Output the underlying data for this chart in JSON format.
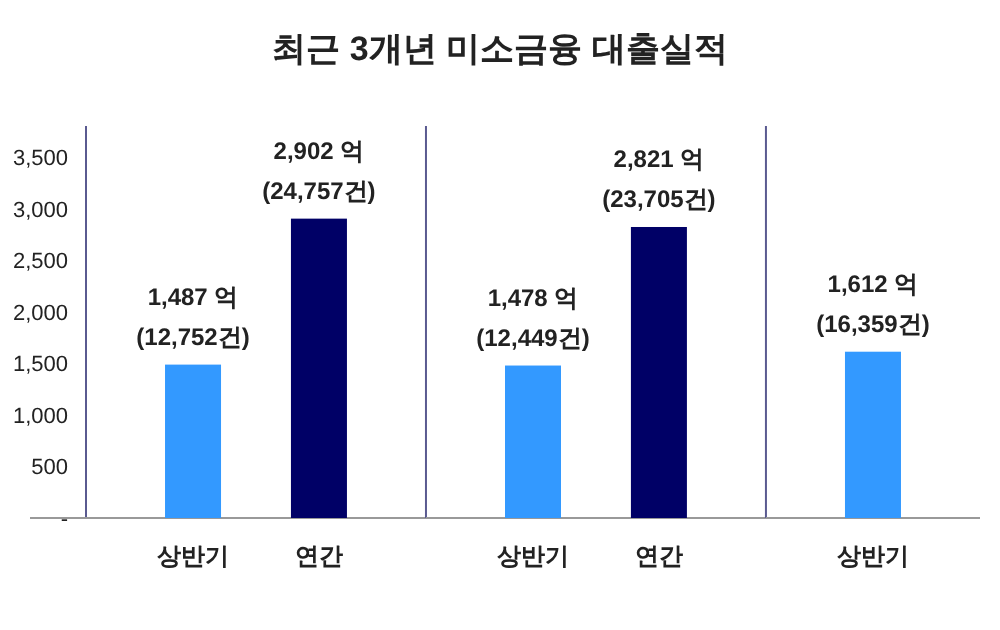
{
  "chart_data": [
    {
      "type": "bar",
      "title": "최근 3개년 미소금융 대출실적",
      "categories": [
        "상반기",
        "연간"
      ],
      "values": [
        1487,
        2902
      ],
      "colors": [
        "#3399ff",
        "#000066"
      ],
      "value_labels": [
        "1,487 억\n(12,752건)",
        "2,902 억\n(24,757건)"
      ],
      "ylim": [
        0,
        3800
      ],
      "yticks": [
        {
          "value": 0,
          "label": "-"
        },
        {
          "value": 500,
          "label": "500"
        },
        {
          "value": 1000,
          "label": "1,000"
        },
        {
          "value": 1500,
          "label": "1,500"
        },
        {
          "value": 2000,
          "label": "2,000"
        },
        {
          "value": 2500,
          "label": "2,500"
        },
        {
          "value": 3000,
          "label": "3,000"
        },
        {
          "value": 3500,
          "label": "3,500"
        }
      ]
    },
    {
      "type": "bar",
      "categories": [
        "상반기",
        "연간"
      ],
      "values": [
        1478,
        2821
      ],
      "colors": [
        "#3399ff",
        "#000066"
      ],
      "value_labels": [
        "1,478 억\n(12,449건)",
        "2,821 억\n(23,705건)"
      ],
      "ylim": [
        0,
        3800
      ],
      "tick_labels": "x"
    },
    {
      "type": "bar",
      "categories": [
        "상반기"
      ],
      "values": [
        1612
      ],
      "colors": [
        "#3399ff"
      ],
      "value_labels": [
        "1,612 억\n(16,359건)"
      ],
      "ylim": [
        0,
        3800
      ],
      "tick_labels": "x"
    }
  ]
}
